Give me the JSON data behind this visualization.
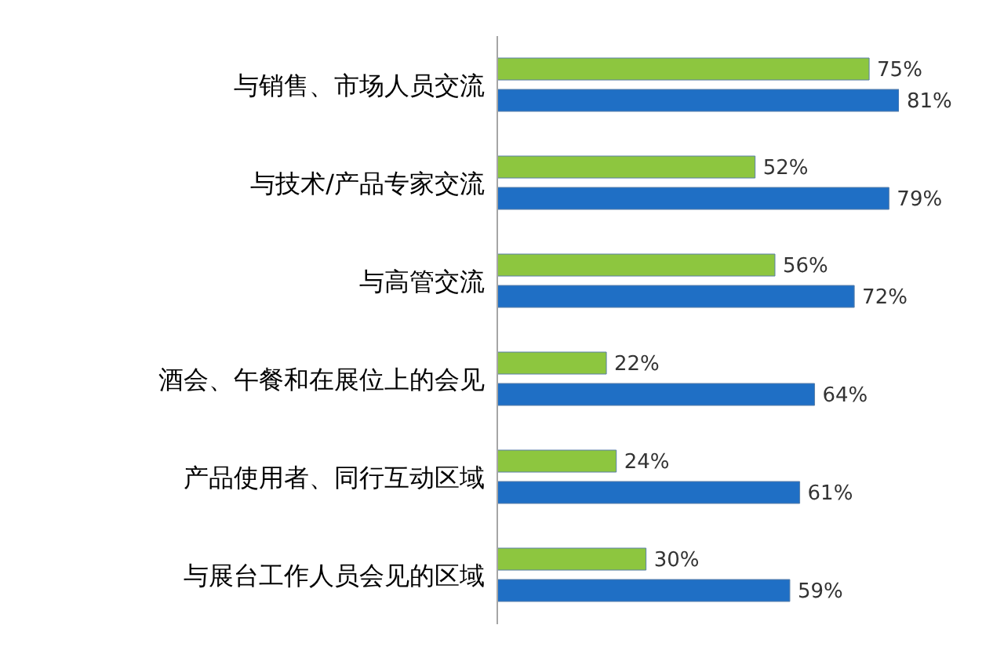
{
  "chart_data": {
    "type": "bar",
    "orientation": "horizontal",
    "categories": [
      "与销售、市场人员交流",
      "与技术/产品专家交流",
      "与高管交流",
      "酒会、午餐和在展位上的会见",
      "产品使用者、同行互动区域",
      "与展台工作人员会见的区域"
    ],
    "series": [
      {
        "color": "#8dc63f",
        "values": [
          75,
          52,
          56,
          22,
          24,
          30
        ],
        "value_labels": [
          "75%",
          "52%",
          "56%",
          "22%",
          "24%",
          "30%"
        ]
      },
      {
        "color": "#1f6fc5",
        "values": [
          81,
          79,
          72,
          64,
          61,
          59
        ],
        "value_labels": [
          "81%",
          "79%",
          "72%",
          "64%",
          "61%",
          "59%"
        ]
      }
    ]
  }
}
